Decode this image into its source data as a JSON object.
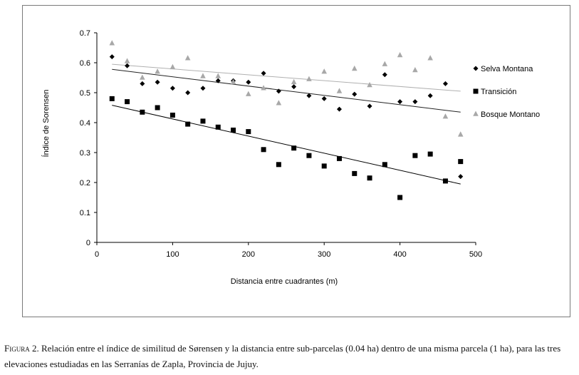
{
  "chart_data": {
    "type": "scatter",
    "title": "",
    "xlabel": "Distancia entre cuadrantes (m)",
    "ylabel": "Índice de Sorensen",
    "xlim": [
      0,
      500
    ],
    "ylim": [
      0,
      0.7
    ],
    "xticks": [
      0,
      100,
      200,
      300,
      400,
      500
    ],
    "yticks": [
      0,
      0.1,
      0.2,
      0.3,
      0.4,
      0.5,
      0.6,
      0.7
    ],
    "xtick_labels": [
      "0",
      "100",
      "200",
      "300",
      "400",
      "500"
    ],
    "ytick_labels": [
      "0",
      "0.1",
      "0.2",
      "0.3",
      "0.4",
      "0.5",
      "0.6",
      "0.7"
    ],
    "legend_position": "right",
    "series": [
      {
        "name": "Selva Montana",
        "marker": "diamond",
        "color": "#000000",
        "trend_color": "#222222",
        "x": [
          20,
          40,
          60,
          80,
          100,
          120,
          140,
          160,
          180,
          200,
          220,
          240,
          260,
          280,
          300,
          320,
          340,
          360,
          380,
          400,
          420,
          440,
          460,
          480
        ],
        "y": [
          0.62,
          0.59,
          0.53,
          0.535,
          0.515,
          0.5,
          0.515,
          0.54,
          0.54,
          0.535,
          0.565,
          0.505,
          0.52,
          0.49,
          0.48,
          0.445,
          0.495,
          0.455,
          0.56,
          0.47,
          0.47,
          0.49,
          0.53,
          0.22
        ],
        "trend": [
          [
            20,
            0.578
          ],
          [
            480,
            0.435
          ]
        ]
      },
      {
        "name": "Transición",
        "marker": "square",
        "color": "#000000",
        "trend_color": "#000000",
        "x": [
          20,
          40,
          60,
          80,
          100,
          120,
          140,
          160,
          180,
          200,
          220,
          240,
          260,
          280,
          300,
          320,
          340,
          360,
          380,
          400,
          420,
          440,
          460,
          480
        ],
        "y": [
          0.48,
          0.47,
          0.435,
          0.45,
          0.425,
          0.395,
          0.405,
          0.385,
          0.375,
          0.37,
          0.31,
          0.26,
          0.315,
          0.29,
          0.255,
          0.28,
          0.23,
          0.215,
          0.26,
          0.15,
          0.29,
          0.295,
          0.205,
          0.27
        ],
        "trend": [
          [
            20,
            0.458
          ],
          [
            480,
            0.195
          ]
        ]
      },
      {
        "name": "Bosque Montano",
        "marker": "triangle",
        "color": "#a8a8a8",
        "trend_color": "#b0b0b0",
        "x": [
          20,
          40,
          60,
          80,
          100,
          120,
          140,
          160,
          180,
          200,
          220,
          240,
          260,
          280,
          300,
          320,
          340,
          360,
          380,
          400,
          420,
          440,
          460,
          480
        ],
        "y": [
          0.665,
          0.605,
          0.55,
          0.57,
          0.585,
          0.615,
          0.555,
          0.555,
          0.535,
          0.495,
          0.515,
          0.465,
          0.535,
          0.545,
          0.57,
          0.505,
          0.58,
          0.525,
          0.595,
          0.625,
          0.575,
          0.615,
          0.42,
          0.36
        ],
        "trend": [
          [
            20,
            0.595
          ],
          [
            480,
            0.505
          ]
        ]
      }
    ]
  },
  "caption": {
    "label": "Figura 2.",
    "text": " Relación entre el índice de similitud de Sørensen y la distancia entre sub-parcelas (0.04 ha) dentro de una misma parcela (1 ha), para las tres elevaciones estudiadas en las Serranías de Zapla, Provincia de Jujuy."
  }
}
